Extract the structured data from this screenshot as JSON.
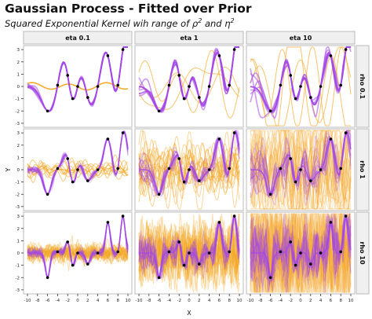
{
  "title": "Gaussian Process - Fitted over Prior",
  "subtitle": {
    "text": "Squared Exponential Kernel wih range of",
    "rho": "ρ",
    "rho_exp": "2",
    "and": "and",
    "eta": "η",
    "eta_exp": "2"
  },
  "chart_data": {
    "type": "line",
    "facet_columns": [
      "eta 0.1",
      "eta 1",
      "eta 10"
    ],
    "facet_rows": [
      "rho 0.1",
      "rho 1",
      "rho 10"
    ],
    "xlabel": "X",
    "ylabel": "Y",
    "xlim": [
      -10,
      10
    ],
    "ylim": [
      -3.2,
      3.2
    ],
    "x_ticks": [
      -10,
      -8,
      -6,
      -4,
      -2,
      0,
      2,
      4,
      6,
      8,
      10
    ],
    "y_ticks": [
      -3,
      -2,
      -1,
      0,
      1,
      2,
      3
    ],
    "grid": false,
    "observations": {
      "x": [
        -6,
        -4,
        -2,
        -1,
        0,
        2,
        4,
        6,
        8,
        9
      ],
      "y": [
        -2,
        0.1,
        0.9,
        -1,
        0,
        -0.9,
        0,
        2.5,
        0.1,
        3
      ]
    },
    "series": [
      {
        "name": "prior draws",
        "color": "#f5a623"
      },
      {
        "name": "posterior draws",
        "color": "#a347e6"
      }
    ],
    "colors": {
      "prior": "#f5a623",
      "posterior": "#a347e6",
      "strip_fill": "#f0f0f0",
      "panel_border": "#bbbbbb",
      "points": "#000000"
    }
  }
}
